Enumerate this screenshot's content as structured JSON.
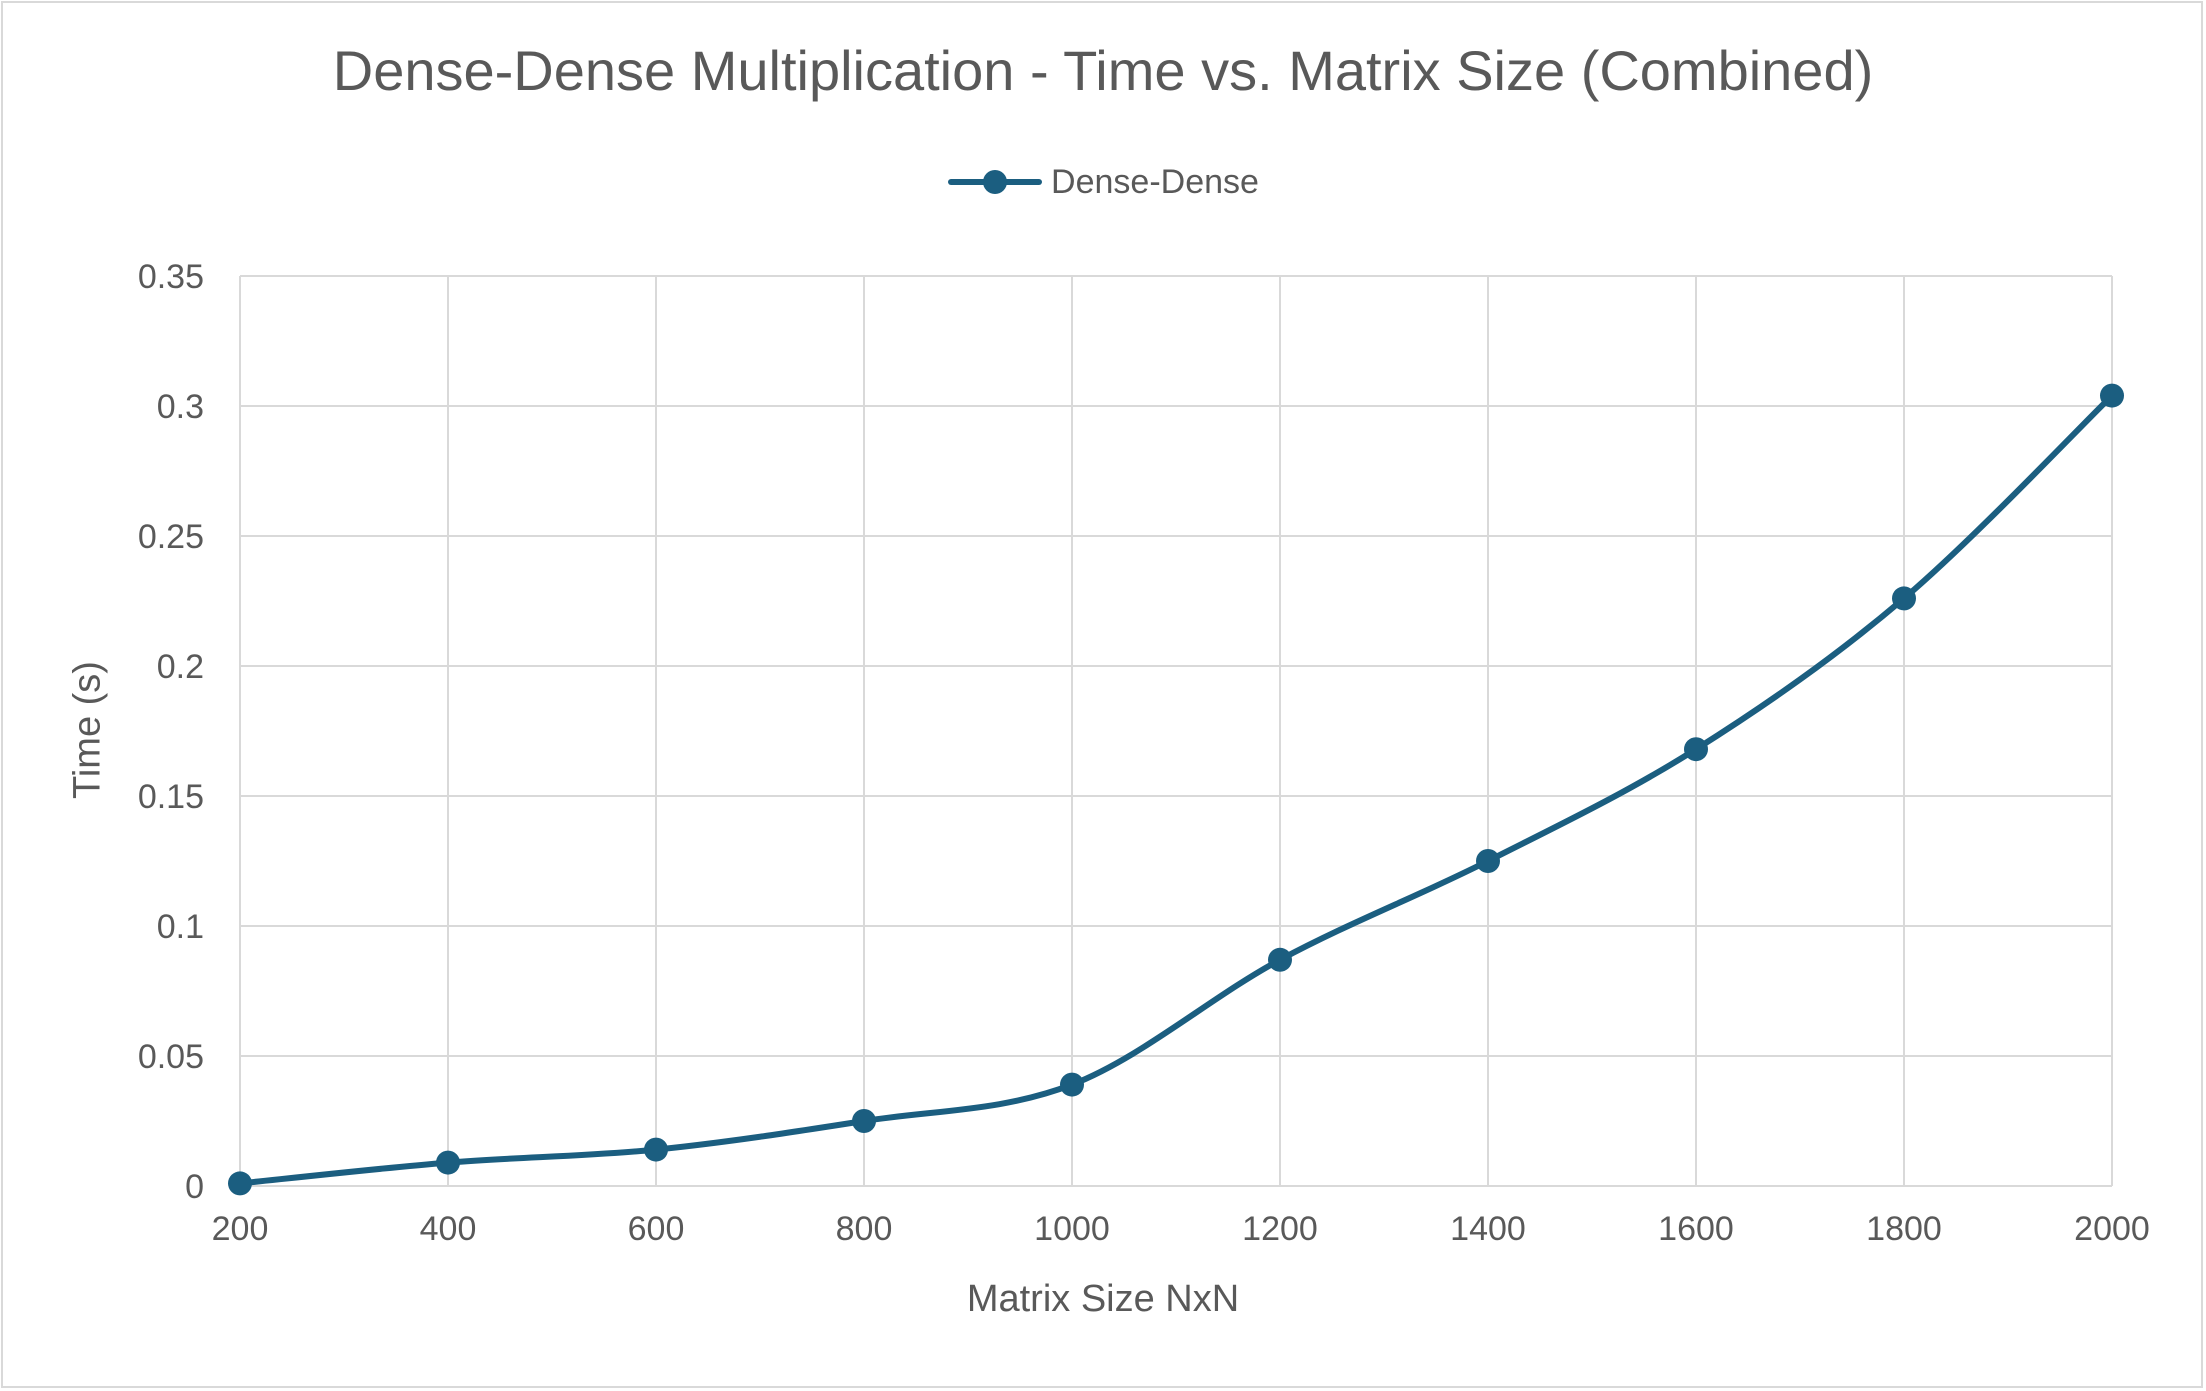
{
  "chart_data": {
    "type": "line",
    "title": "Dense-Dense Multiplication - Time vs. Matrix Size (Combined)",
    "xlabel": "Matrix Size NxN",
    "ylabel": "Time (s)",
    "categories": [
      "200",
      "400",
      "600",
      "800",
      "1000",
      "1200",
      "1400",
      "1600",
      "1800",
      "2000"
    ],
    "series": [
      {
        "name": "Dense-Dense",
        "values": [
          0.001,
          0.009,
          0.014,
          0.025,
          0.039,
          0.087,
          0.125,
          0.168,
          0.226,
          0.304
        ]
      }
    ],
    "ylim": [
      0,
      0.35
    ],
    "yticks": [
      "0",
      "0.05",
      "0.1",
      "0.15",
      "0.2",
      "0.25",
      "0.3",
      "0.35"
    ],
    "grid": true,
    "legend_position": "top-center",
    "colors": {
      "series": "#1b5e80",
      "grid": "#d9d9d9",
      "text": "#595959"
    }
  }
}
